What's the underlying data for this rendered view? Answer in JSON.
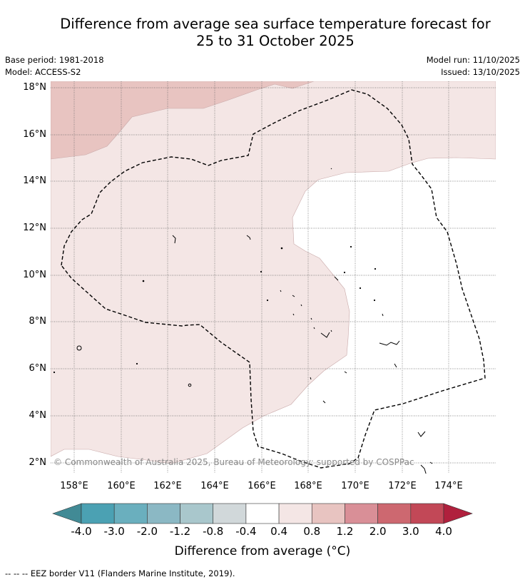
{
  "title_line1": "Difference from average sea surface temperature forecast for",
  "title_line2": "25 to 31 October 2025",
  "base_period": "Base period: 1981-2018",
  "model": "Model: ACCESS-S2",
  "model_run": "Model run: 11/10/2025",
  "issued": "Issued: 13/10/2025",
  "lat_labels": [
    "18°N",
    "16°N",
    "14°N",
    "12°N",
    "10°N",
    "8°N",
    "6°N",
    "4°N",
    "2°N"
  ],
  "lon_labels": [
    "158°E",
    "160°E",
    "162°E",
    "164°E",
    "166°E",
    "168°E",
    "170°E",
    "172°E",
    "174°E"
  ],
  "copyright": "© Commonwealth of Australia 2025, Bureau of Meteorology; supported by COSPPac",
  "colorbar": {
    "labels": [
      "-4.0",
      "-3.0",
      "-2.0",
      "-1.2",
      "-0.8",
      "-0.4",
      "0.4",
      "0.8",
      "1.2",
      "2.0",
      "3.0",
      "4.0"
    ],
    "colors": [
      "#418a95",
      "#4ba1b3",
      "#6aafbe",
      "#8bb8c4",
      "#a9c7cc",
      "#d1d8da",
      "#ffffff",
      "#f4e6e5",
      "#e8c4c1",
      "#d98f97",
      "#cd6870",
      "#c24857",
      "#b0203d"
    ],
    "title": "Difference from average (°C)"
  },
  "legend_text": "-- -- -- EEZ border V11 (Flanders Marine Institute, 2019).",
  "colors": {
    "anomaly_0_4_to_0_8": "#f4e6e5",
    "anomaly_0_8_to_1_2": "#e8c4c1",
    "background": "#ffffff"
  }
}
